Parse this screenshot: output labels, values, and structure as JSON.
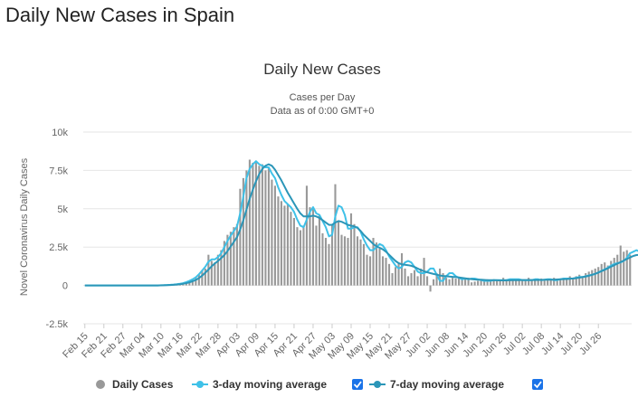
{
  "page": {
    "title": "Daily New Cases in Spain"
  },
  "colors": {
    "bars": "#999999",
    "ma3": "#3fc1e8",
    "ma7": "#2b96b8",
    "checkbox": "#1a73e8",
    "grid": "#e6e6e6"
  },
  "chart_data": {
    "type": "bar",
    "title": "Daily New Cases",
    "subtitle": "Cases per Day",
    "subtitle2": "Data as of 0:00 GMT+0",
    "ylabel": "Novel Coronavirus Daily Cases",
    "xlabel": "",
    "ylim": [
      -2500,
      10000
    ],
    "yticks": [
      -2500,
      0,
      2500,
      5000,
      7500,
      10000
    ],
    "ytick_labels": [
      "-2.5k",
      "0",
      "2.5k",
      "5k",
      "7.5k",
      "10k"
    ],
    "grid": true,
    "legend_position": "bottom",
    "start_date": "Feb 15",
    "x_tick_labels": [
      "Feb 15",
      "Feb 21",
      "Feb 27",
      "Mar 04",
      "Mar 10",
      "Mar 16",
      "Mar 22",
      "Mar 28",
      "Apr 03",
      "Apr 09",
      "Apr 15",
      "Apr 21",
      "Apr 27",
      "May 03",
      "May 09",
      "May 15",
      "May 21",
      "May 27",
      "Jun 02",
      "Jun 08",
      "Jun 14",
      "Jun 20",
      "Jun 26",
      "Jul 02",
      "Jul 08",
      "Jul 14",
      "Jul 20",
      "Jul 26"
    ],
    "x_tick_step_days": 6,
    "series": [
      {
        "name": "Daily Cases",
        "type": "bar",
        "values": [
          0,
          0,
          0,
          0,
          0,
          0,
          0,
          0,
          0,
          0,
          0,
          0,
          0,
          0,
          0,
          0,
          0,
          0,
          0,
          0,
          0,
          0,
          0,
          0,
          0,
          10,
          20,
          30,
          60,
          80,
          100,
          150,
          200,
          300,
          400,
          500,
          700,
          1000,
          1100,
          2000,
          1600,
          1500,
          2000,
          2300,
          2900,
          3300,
          3500,
          3800,
          4000,
          6300,
          7000,
          7500,
          8200,
          8000,
          8000,
          7800,
          7900,
          7500,
          7700,
          6900,
          6500,
          5800,
          5500,
          5200,
          5300,
          4800,
          4400,
          3800,
          3600,
          3900,
          6500,
          5100,
          5000,
          3900,
          4600,
          3400,
          3100,
          2700,
          4000,
          6600,
          4200,
          3300,
          3200,
          3100,
          4700,
          4000,
          3200,
          3000,
          2700,
          2000,
          1900,
          3100,
          2800,
          2400,
          1900,
          1800,
          1400,
          800,
          1200,
          1400,
          2100,
          1100,
          600,
          800,
          1000,
          600,
          1100,
          1800,
          600,
          -400,
          400,
          800,
          1100,
          800,
          500,
          400,
          500,
          450,
          500,
          400,
          450,
          500,
          200,
          250,
          300,
          300,
          350,
          400,
          350,
          400,
          300,
          350,
          500,
          400,
          400,
          300,
          350,
          400,
          300,
          350,
          500,
          400,
          300,
          400,
          450,
          300,
          350,
          400,
          500,
          450,
          400,
          450,
          500,
          600,
          500,
          600,
          700,
          600,
          800,
          900,
          1000,
          1100,
          1200,
          1400,
          1500,
          1300,
          1600,
          1800,
          2000,
          2600,
          2200,
          2300,
          2000
        ]
      },
      {
        "name": "3-day moving average",
        "type": "line",
        "values": [
          0,
          0,
          0,
          0,
          0,
          0,
          0,
          0,
          0,
          0,
          0,
          0,
          0,
          0,
          0,
          0,
          0,
          0,
          0,
          0,
          0,
          0,
          0,
          0,
          10,
          20,
          30,
          40,
          60,
          80,
          110,
          150,
          220,
          300,
          400,
          530,
          730,
          970,
          1220,
          1550,
          1700,
          1700,
          1850,
          2100,
          2500,
          2900,
          3250,
          3550,
          3850,
          4700,
          5800,
          7000,
          7600,
          7900,
          8100,
          7900,
          7800,
          7700,
          7700,
          7300,
          7000,
          6400,
          5900,
          5500,
          5300,
          5100,
          4800,
          4300,
          3900,
          3800,
          4300,
          4800,
          5100,
          4700,
          4600,
          4200,
          3800,
          3200,
          3300,
          4500,
          5200,
          5100,
          4600,
          3700,
          3700,
          3800,
          3800,
          3500,
          3000,
          2600,
          2300,
          2300,
          2500,
          2700,
          2600,
          2300,
          1900,
          1600,
          1300,
          1100,
          1200,
          1500,
          1600,
          1500,
          1200,
          900,
          800,
          800,
          900,
          1100,
          1100,
          700,
          300,
          300,
          600,
          800,
          800,
          600,
          500,
          400,
          450,
          400,
          450,
          450,
          400,
          350,
          300,
          300,
          300,
          350,
          350,
          350,
          350,
          350,
          400,
          400,
          400,
          400,
          350,
          350,
          350,
          350,
          400,
          400,
          350,
          380,
          400,
          400,
          350,
          350,
          400,
          450,
          450,
          450,
          450,
          500,
          550,
          550,
          600,
          650,
          700,
          750,
          850,
          950,
          1050,
          1150,
          1300,
          1400,
          1450,
          1500,
          1600,
          1800,
          2100,
          2200,
          2300,
          2200
        ]
      },
      {
        "name": "7-day moving average",
        "type": "line",
        "values": [
          0,
          0,
          0,
          0,
          0,
          0,
          0,
          0,
          0,
          0,
          0,
          0,
          0,
          0,
          0,
          0,
          0,
          0,
          0,
          0,
          0,
          0,
          0,
          0,
          5,
          10,
          20,
          30,
          40,
          60,
          80,
          110,
          150,
          200,
          270,
          360,
          480,
          640,
          830,
          1040,
          1250,
          1430,
          1600,
          1780,
          1980,
          2240,
          2540,
          2840,
          3150,
          3650,
          4250,
          4950,
          5650,
          6250,
          6800,
          7250,
          7600,
          7800,
          7900,
          7800,
          7550,
          7200,
          6850,
          6450,
          6050,
          5700,
          5350,
          5000,
          4700,
          4500,
          4500,
          4500,
          4550,
          4500,
          4400,
          4250,
          4100,
          3950,
          3950,
          4100,
          4200,
          4150,
          4050,
          3950,
          3900,
          3850,
          3750,
          3550,
          3300,
          3100,
          2900,
          2700,
          2550,
          2450,
          2350,
          2200,
          2000,
          1800,
          1600,
          1450,
          1380,
          1350,
          1320,
          1280,
          1200,
          1100,
          1000,
          920,
          860,
          800,
          750,
          700,
          650,
          620,
          600,
          580,
          560,
          540,
          520,
          490,
          460,
          430,
          410,
          390,
          380,
          370,
          360,
          350,
          345,
          340,
          335,
          330,
          330,
          330,
          335,
          340,
          345,
          350,
          355,
          355,
          355,
          355,
          355,
          360,
          360,
          365,
          370,
          375,
          380,
          390,
          400,
          410,
          420,
          435,
          455,
          480,
          510,
          540,
          580,
          630,
          690,
          760,
          840,
          930,
          1020,
          1120,
          1220,
          1320,
          1420,
          1520,
          1620,
          1720,
          1820,
          1920,
          1980,
          2000
        ]
      }
    ]
  },
  "legend": {
    "items": [
      {
        "label": "Daily Cases",
        "checkbox": false
      },
      {
        "label": "3-day moving average",
        "checkbox": true
      },
      {
        "label": "7-day moving average",
        "checkbox": true
      }
    ]
  }
}
